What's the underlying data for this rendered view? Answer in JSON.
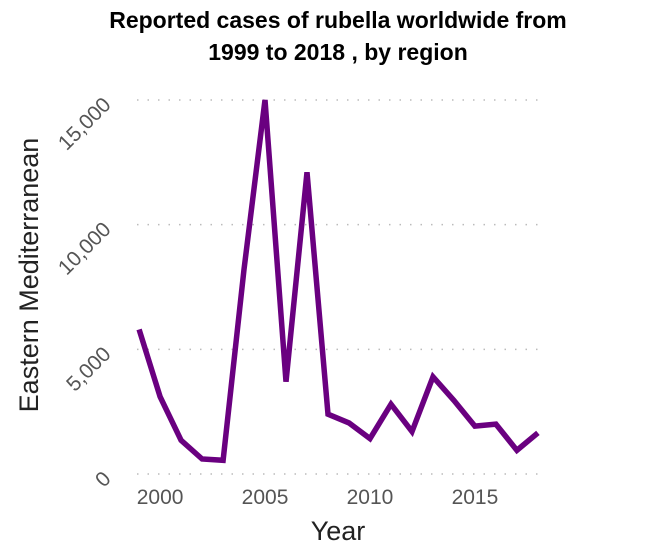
{
  "chart_data": {
    "type": "line",
    "title_lines": [
      "Reported cases of rubella worldwide from",
      "1999 to 2018 , by region"
    ],
    "xlabel": "Year",
    "ylabel": "Eastern Mediterranean",
    "xlim": [
      1998.9,
      2018.1
    ],
    "ylim": [
      0,
      15000
    ],
    "x_ticks": [
      2000,
      2005,
      2010,
      2015
    ],
    "y_ticks": [
      0,
      5000,
      10000,
      15000
    ],
    "y_tick_labels": [
      "0",
      "5,000",
      "10,000",
      "15,000"
    ],
    "grid": "horizontal dotted",
    "line_color": "#6a0080",
    "series": [
      {
        "x": [
          1999,
          2000,
          2001,
          2002,
          2003,
          2004,
          2005,
          2006,
          2007,
          2008,
          2009,
          2010,
          2011,
          2012,
          2013,
          2014,
          2015,
          2016,
          2017,
          2018
        ],
        "values": [
          5800,
          3100,
          1350,
          600,
          550,
          8200,
          15000,
          3700,
          12100,
          2400,
          2050,
          1420,
          2800,
          1700,
          3900,
          2950,
          1920,
          2000,
          950,
          1650
        ]
      }
    ]
  }
}
